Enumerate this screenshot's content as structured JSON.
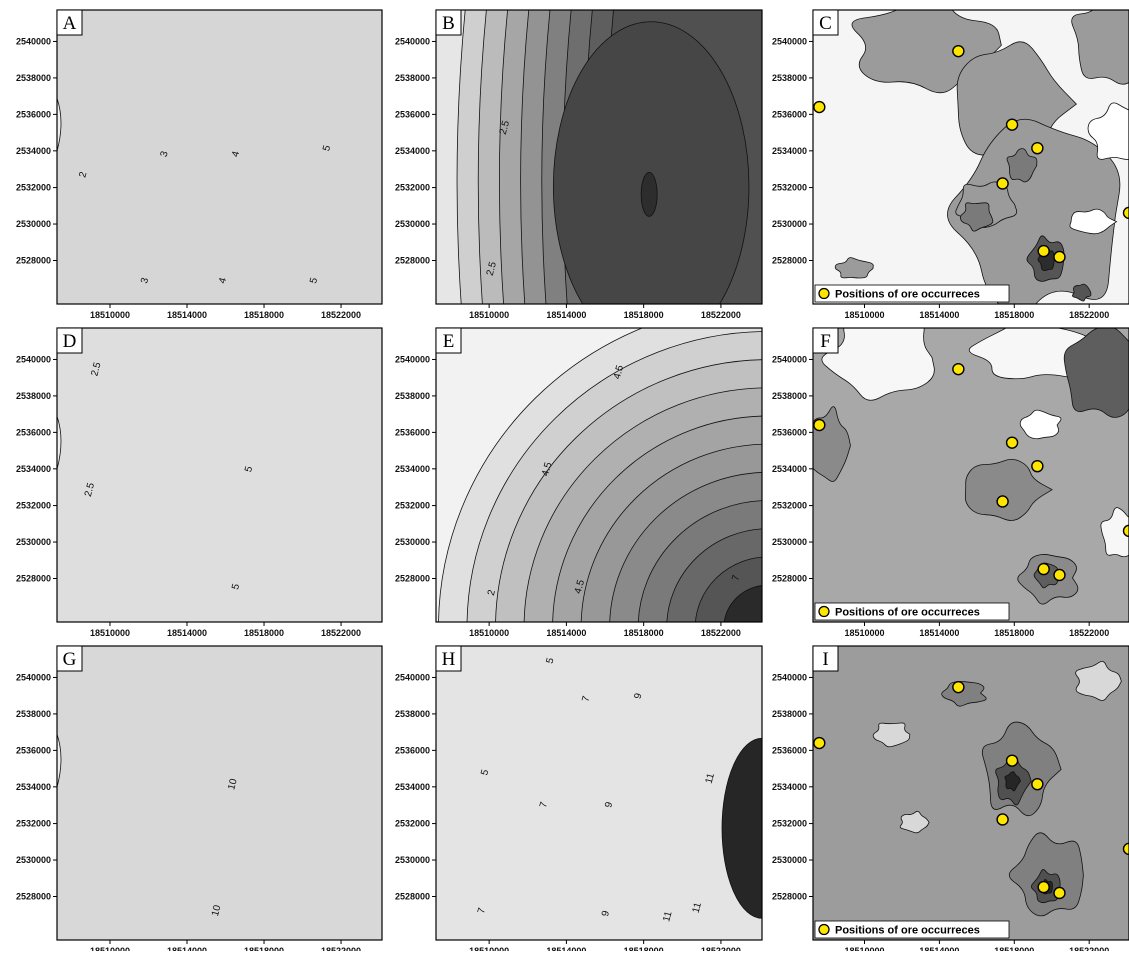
{
  "figure": {
    "x_ticks": [
      "18510000",
      "18514000",
      "18518000",
      "18522000"
    ],
    "y_ticks": [
      "2540000",
      "2538000",
      "2536000",
      "2534000",
      "2532000",
      "2530000",
      "2528000"
    ],
    "legend_text": "Positions of ore occurreces",
    "colors": {
      "ore_marker_fill": "#ffe600",
      "ore_marker_stroke": "#000000",
      "contour_line": "#111111",
      "frame": "#000000"
    },
    "panels": [
      {
        "id": "A",
        "label": "A",
        "kind": "gradient",
        "shades": [
          "#d6d6d6",
          "#c2c2c2",
          "#adadad",
          "#9a9a9a",
          "#888888",
          "#777777",
          "#666666",
          "#555555",
          "#444444"
        ],
        "contour_labels": [
          "2",
          "3",
          "3",
          "4",
          "4",
          "5",
          "5"
        ]
      },
      {
        "id": "B",
        "label": "B",
        "kind": "dome",
        "shades": [
          "#e6e6e6",
          "#cfcfcf",
          "#bbbbbb",
          "#a6a6a6",
          "#939393",
          "#808080",
          "#6e6e6e",
          "#5e5e5e",
          "#505050",
          "#464646",
          "#2d2d2d"
        ],
        "contour_labels": [
          "2.5",
          "2.5"
        ]
      },
      {
        "id": "C",
        "label": "C",
        "kind": "ore",
        "shades": [
          "#f5f5f5",
          "#9b9b9b",
          "#7a7a7a",
          "#555555"
        ],
        "contour_labels": [],
        "has_legend": true
      },
      {
        "id": "D",
        "label": "D",
        "kind": "gradient",
        "shades": [
          "#dedede",
          "#cacaca",
          "#b5b5b5",
          "#a0a0a0",
          "#8c8c8c",
          "#787878",
          "#646464",
          "#505050",
          "#3c3c3c",
          "#282828"
        ],
        "contour_labels": [
          "2.5",
          "2.5",
          "5",
          "5"
        ]
      },
      {
        "id": "E",
        "label": "E",
        "kind": "bowl",
        "shades": [
          "#f2f2f2",
          "#e0e0e0",
          "#d0d0d0",
          "#c0c0c0",
          "#b0b0b0",
          "#a4a4a4",
          "#989898",
          "#8a8a8a",
          "#7a7a7a",
          "#686868",
          "#555555",
          "#2a2a2a"
        ],
        "contour_labels": [
          "4.5",
          "4.5",
          "4.5",
          "2",
          "7"
        ]
      },
      {
        "id": "F",
        "label": "F",
        "kind": "ore",
        "shades": [
          "#f7f7f7",
          "#a8a8a8",
          "#8a8a8a",
          "#5e5e5e"
        ],
        "contour_labels": [],
        "has_legend": true
      },
      {
        "id": "G",
        "label": "G",
        "kind": "gradient",
        "shades": [
          "#d8d8d8",
          "#c4c4c4",
          "#b0b0b0",
          "#9c9c9c",
          "#888888",
          "#747474",
          "#606060",
          "#4c4c4c",
          "#383838",
          "#242424",
          "#101010"
        ],
        "contour_labels": [
          "10",
          "10"
        ]
      },
      {
        "id": "H",
        "label": "H",
        "kind": "curve",
        "shades": [
          "#e4e4e4",
          "#d2d2d2",
          "#c0c0c0",
          "#b0b0b0",
          "#a0a0a0",
          "#909090",
          "#808080",
          "#707070",
          "#606060",
          "#505050",
          "#404040",
          "#2c2c2c"
        ],
        "contour_labels": [
          "5",
          "5",
          "7",
          "7",
          "9",
          "9",
          "11",
          "11",
          "7",
          "9",
          "11"
        ]
      },
      {
        "id": "I",
        "label": "I",
        "kind": "ore",
        "shades": [
          "#d8d8d8",
          "#9c9c9c",
          "#808080",
          "#505050"
        ],
        "contour_labels": [],
        "has_legend": true
      }
    ]
  }
}
